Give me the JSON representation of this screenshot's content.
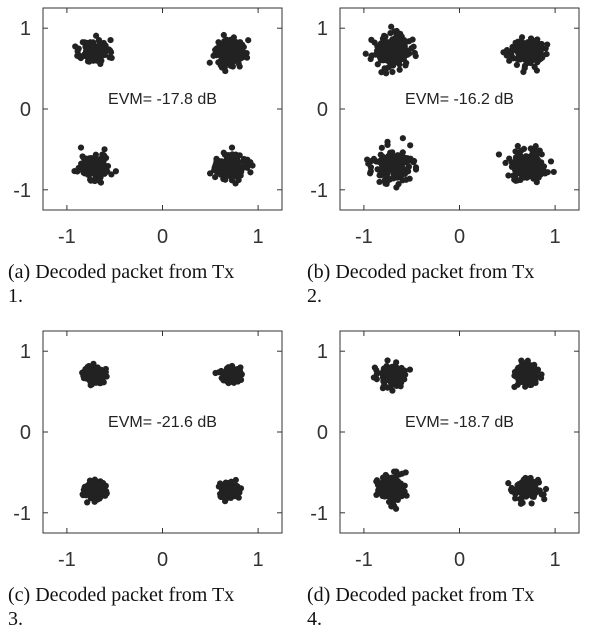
{
  "chart_data": [
    {
      "type": "scatter",
      "id": "a",
      "annotation": "EVM= -17.8 dB",
      "caption_line1": "(a) Decoded packet from Tx",
      "caption_line2": "1.",
      "xlim": [
        -1.25,
        1.25
      ],
      "ylim": [
        -1.25,
        1.25
      ],
      "xticks": [
        -1,
        0,
        1
      ],
      "yticks": [
        -1,
        0,
        1
      ],
      "xtick_labels": [
        "-1",
        "0",
        "1"
      ],
      "ytick_labels": [
        "-1",
        "0",
        "1"
      ],
      "clusters": [
        {
          "cx": -0.71,
          "cy": 0.71,
          "spread": 0.072
        },
        {
          "cx": 0.71,
          "cy": 0.71,
          "spread": 0.08
        },
        {
          "cx": -0.71,
          "cy": -0.71,
          "spread": 0.08
        },
        {
          "cx": 0.71,
          "cy": -0.71,
          "spread": 0.075
        }
      ],
      "points_per_cluster": 150,
      "seed": 11
    },
    {
      "type": "scatter",
      "id": "b",
      "annotation": "EVM= -16.2 dB",
      "caption_line1": "(b) Decoded packet from Tx",
      "caption_line2": "2.",
      "xlim": [
        -1.25,
        1.25
      ],
      "ylim": [
        -1.25,
        1.25
      ],
      "xticks": [
        -1,
        0,
        1
      ],
      "yticks": [
        -1,
        0,
        1
      ],
      "xtick_labels": [
        "-1",
        "0",
        "1"
      ],
      "ytick_labels": [
        "-1",
        "0",
        "1"
      ],
      "clusters": [
        {
          "cx": -0.71,
          "cy": 0.71,
          "spread": 0.1
        },
        {
          "cx": 0.71,
          "cy": 0.71,
          "spread": 0.085
        },
        {
          "cx": -0.71,
          "cy": -0.71,
          "spread": 0.11
        },
        {
          "cx": 0.71,
          "cy": -0.71,
          "spread": 0.095
        }
      ],
      "points_per_cluster": 170,
      "seed": 23
    },
    {
      "type": "scatter",
      "id": "c",
      "annotation": "EVM= -21.6 dB",
      "caption_line1": "(c) Decoded packet from Tx",
      "caption_line2": "3.",
      "xlim": [
        -1.25,
        1.25
      ],
      "ylim": [
        -1.25,
        1.25
      ],
      "xticks": [
        -1,
        0,
        1
      ],
      "yticks": [
        -1,
        0,
        1
      ],
      "xtick_labels": [
        "-1",
        "0",
        "1"
      ],
      "ytick_labels": [
        "-1",
        "0",
        "1"
      ],
      "clusters": [
        {
          "cx": -0.71,
          "cy": 0.71,
          "spread": 0.055
        },
        {
          "cx": 0.71,
          "cy": 0.71,
          "spread": 0.05
        },
        {
          "cx": -0.71,
          "cy": -0.71,
          "spread": 0.055
        },
        {
          "cx": 0.71,
          "cy": -0.71,
          "spread": 0.05
        }
      ],
      "points_per_cluster": 120,
      "seed": 37
    },
    {
      "type": "scatter",
      "id": "d",
      "annotation": "EVM= -18.7 dB",
      "caption_line1": "(d) Decoded packet from Tx",
      "caption_line2": "4.",
      "xlim": [
        -1.25,
        1.25
      ],
      "ylim": [
        -1.25,
        1.25
      ],
      "xticks": [
        -1,
        0,
        1
      ],
      "yticks": [
        -1,
        0,
        1
      ],
      "xtick_labels": [
        "-1",
        "0",
        "1"
      ],
      "ytick_labels": [
        "-1",
        "0",
        "1"
      ],
      "clusters": [
        {
          "cx": -0.71,
          "cy": 0.71,
          "spread": 0.07
        },
        {
          "cx": 0.71,
          "cy": 0.71,
          "spread": 0.07
        },
        {
          "cx": -0.71,
          "cy": -0.71,
          "spread": 0.08
        },
        {
          "cx": 0.71,
          "cy": -0.71,
          "spread": 0.07
        }
      ],
      "points_per_cluster": 140,
      "seed": 53
    }
  ]
}
